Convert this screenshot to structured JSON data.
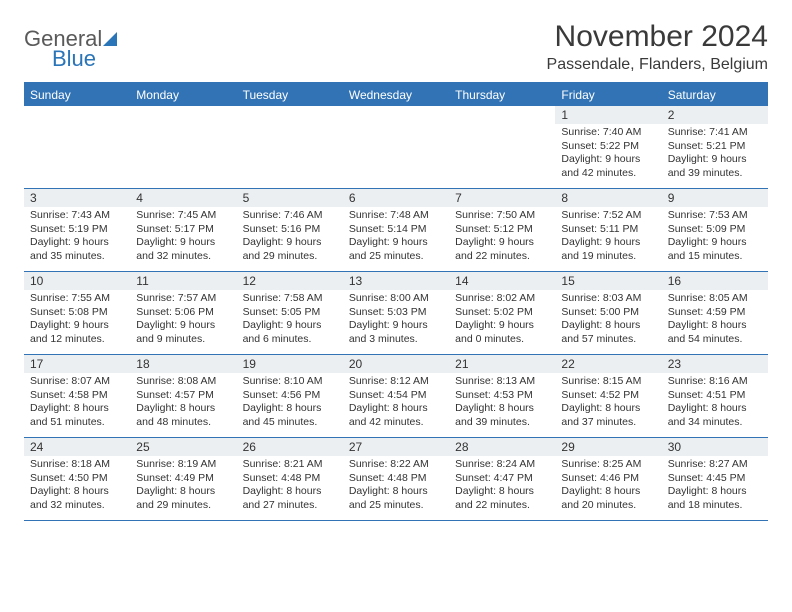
{
  "logo": {
    "general": "General",
    "blue": "Blue"
  },
  "title": "November 2024",
  "location": "Passendale, Flanders, Belgium",
  "colors": {
    "header_bg": "#3173b5",
    "header_text": "#ffffff",
    "daynum_bg": "#eceff2",
    "border": "#3173b5",
    "text": "#333333",
    "logo_blue": "#2a74b8",
    "logo_gray": "#5a5a5a"
  },
  "dow": [
    "Sunday",
    "Monday",
    "Tuesday",
    "Wednesday",
    "Thursday",
    "Friday",
    "Saturday"
  ],
  "weeks": [
    [
      {
        "empty": true
      },
      {
        "empty": true
      },
      {
        "empty": true
      },
      {
        "empty": true
      },
      {
        "empty": true
      },
      {
        "day": "1",
        "sunrise": "Sunrise: 7:40 AM",
        "sunset": "Sunset: 5:22 PM",
        "daylight": "Daylight: 9 hours and 42 minutes."
      },
      {
        "day": "2",
        "sunrise": "Sunrise: 7:41 AM",
        "sunset": "Sunset: 5:21 PM",
        "daylight": "Daylight: 9 hours and 39 minutes."
      }
    ],
    [
      {
        "day": "3",
        "sunrise": "Sunrise: 7:43 AM",
        "sunset": "Sunset: 5:19 PM",
        "daylight": "Daylight: 9 hours and 35 minutes."
      },
      {
        "day": "4",
        "sunrise": "Sunrise: 7:45 AM",
        "sunset": "Sunset: 5:17 PM",
        "daylight": "Daylight: 9 hours and 32 minutes."
      },
      {
        "day": "5",
        "sunrise": "Sunrise: 7:46 AM",
        "sunset": "Sunset: 5:16 PM",
        "daylight": "Daylight: 9 hours and 29 minutes."
      },
      {
        "day": "6",
        "sunrise": "Sunrise: 7:48 AM",
        "sunset": "Sunset: 5:14 PM",
        "daylight": "Daylight: 9 hours and 25 minutes."
      },
      {
        "day": "7",
        "sunrise": "Sunrise: 7:50 AM",
        "sunset": "Sunset: 5:12 PM",
        "daylight": "Daylight: 9 hours and 22 minutes."
      },
      {
        "day": "8",
        "sunrise": "Sunrise: 7:52 AM",
        "sunset": "Sunset: 5:11 PM",
        "daylight": "Daylight: 9 hours and 19 minutes."
      },
      {
        "day": "9",
        "sunrise": "Sunrise: 7:53 AM",
        "sunset": "Sunset: 5:09 PM",
        "daylight": "Daylight: 9 hours and 15 minutes."
      }
    ],
    [
      {
        "day": "10",
        "sunrise": "Sunrise: 7:55 AM",
        "sunset": "Sunset: 5:08 PM",
        "daylight": "Daylight: 9 hours and 12 minutes."
      },
      {
        "day": "11",
        "sunrise": "Sunrise: 7:57 AM",
        "sunset": "Sunset: 5:06 PM",
        "daylight": "Daylight: 9 hours and 9 minutes."
      },
      {
        "day": "12",
        "sunrise": "Sunrise: 7:58 AM",
        "sunset": "Sunset: 5:05 PM",
        "daylight": "Daylight: 9 hours and 6 minutes."
      },
      {
        "day": "13",
        "sunrise": "Sunrise: 8:00 AM",
        "sunset": "Sunset: 5:03 PM",
        "daylight": "Daylight: 9 hours and 3 minutes."
      },
      {
        "day": "14",
        "sunrise": "Sunrise: 8:02 AM",
        "sunset": "Sunset: 5:02 PM",
        "daylight": "Daylight: 9 hours and 0 minutes."
      },
      {
        "day": "15",
        "sunrise": "Sunrise: 8:03 AM",
        "sunset": "Sunset: 5:00 PM",
        "daylight": "Daylight: 8 hours and 57 minutes."
      },
      {
        "day": "16",
        "sunrise": "Sunrise: 8:05 AM",
        "sunset": "Sunset: 4:59 PM",
        "daylight": "Daylight: 8 hours and 54 minutes."
      }
    ],
    [
      {
        "day": "17",
        "sunrise": "Sunrise: 8:07 AM",
        "sunset": "Sunset: 4:58 PM",
        "daylight": "Daylight: 8 hours and 51 minutes."
      },
      {
        "day": "18",
        "sunrise": "Sunrise: 8:08 AM",
        "sunset": "Sunset: 4:57 PM",
        "daylight": "Daylight: 8 hours and 48 minutes."
      },
      {
        "day": "19",
        "sunrise": "Sunrise: 8:10 AM",
        "sunset": "Sunset: 4:56 PM",
        "daylight": "Daylight: 8 hours and 45 minutes."
      },
      {
        "day": "20",
        "sunrise": "Sunrise: 8:12 AM",
        "sunset": "Sunset: 4:54 PM",
        "daylight": "Daylight: 8 hours and 42 minutes."
      },
      {
        "day": "21",
        "sunrise": "Sunrise: 8:13 AM",
        "sunset": "Sunset: 4:53 PM",
        "daylight": "Daylight: 8 hours and 39 minutes."
      },
      {
        "day": "22",
        "sunrise": "Sunrise: 8:15 AM",
        "sunset": "Sunset: 4:52 PM",
        "daylight": "Daylight: 8 hours and 37 minutes."
      },
      {
        "day": "23",
        "sunrise": "Sunrise: 8:16 AM",
        "sunset": "Sunset: 4:51 PM",
        "daylight": "Daylight: 8 hours and 34 minutes."
      }
    ],
    [
      {
        "day": "24",
        "sunrise": "Sunrise: 8:18 AM",
        "sunset": "Sunset: 4:50 PM",
        "daylight": "Daylight: 8 hours and 32 minutes."
      },
      {
        "day": "25",
        "sunrise": "Sunrise: 8:19 AM",
        "sunset": "Sunset: 4:49 PM",
        "daylight": "Daylight: 8 hours and 29 minutes."
      },
      {
        "day": "26",
        "sunrise": "Sunrise: 8:21 AM",
        "sunset": "Sunset: 4:48 PM",
        "daylight": "Daylight: 8 hours and 27 minutes."
      },
      {
        "day": "27",
        "sunrise": "Sunrise: 8:22 AM",
        "sunset": "Sunset: 4:48 PM",
        "daylight": "Daylight: 8 hours and 25 minutes."
      },
      {
        "day": "28",
        "sunrise": "Sunrise: 8:24 AM",
        "sunset": "Sunset: 4:47 PM",
        "daylight": "Daylight: 8 hours and 22 minutes."
      },
      {
        "day": "29",
        "sunrise": "Sunrise: 8:25 AM",
        "sunset": "Sunset: 4:46 PM",
        "daylight": "Daylight: 8 hours and 20 minutes."
      },
      {
        "day": "30",
        "sunrise": "Sunrise: 8:27 AM",
        "sunset": "Sunset: 4:45 PM",
        "daylight": "Daylight: 8 hours and 18 minutes."
      }
    ]
  ]
}
